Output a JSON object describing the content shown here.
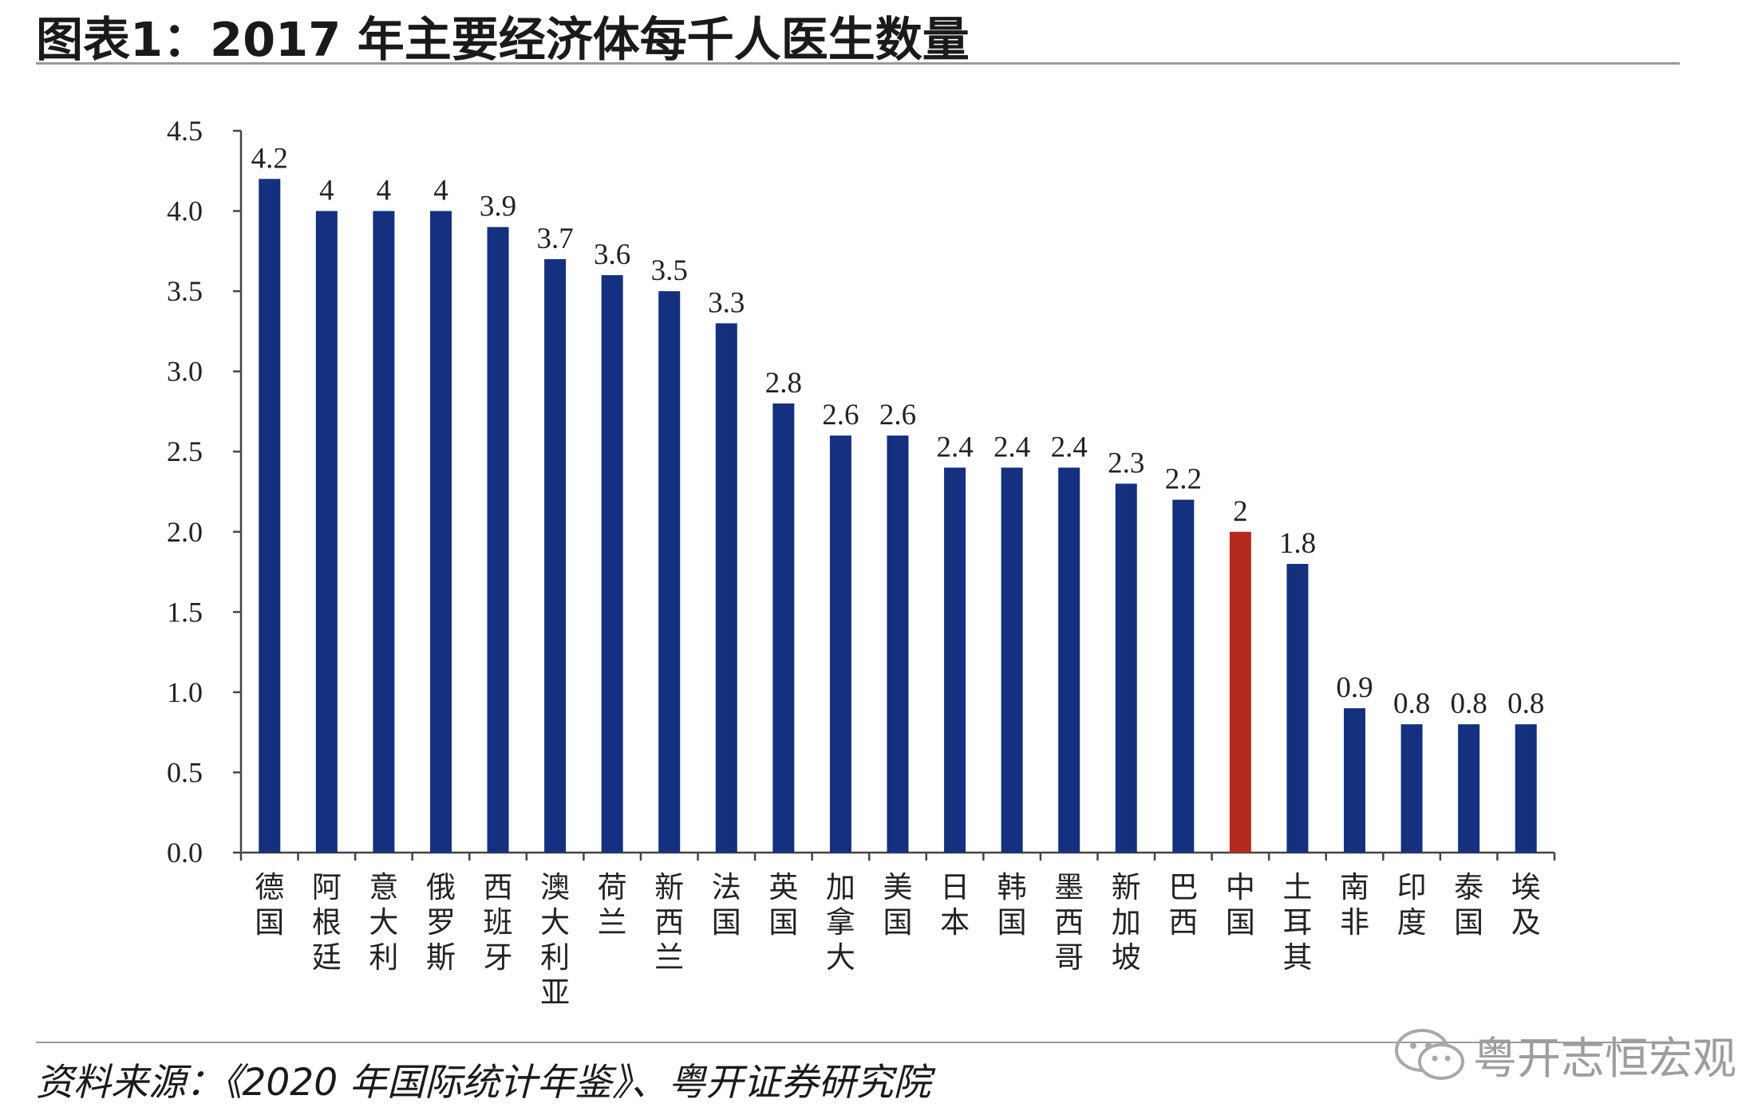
{
  "title": "图表1：2017 年主要经济体每千人医生数量",
  "source": "资料来源：《2020 年国际统计年鉴》、粤开证券研究院",
  "watermark": "粤开志恒宏观",
  "colors": {
    "bar": "#14307e",
    "highlight": "#b52a1f",
    "axis": "#444444"
  },
  "chart_data": {
    "type": "bar",
    "title": "",
    "xlabel": "",
    "ylabel": "",
    "ylim": [
      0,
      4.5
    ],
    "yticks": [
      "0.0",
      "0.5",
      "1.0",
      "1.5",
      "2.0",
      "2.5",
      "3.0",
      "3.5",
      "4.0",
      "4.5"
    ],
    "categories": [
      "德国",
      "阿根廷",
      "意大利",
      "俄罗斯",
      "西班牙",
      "澳大利亚",
      "荷兰",
      "新西兰",
      "法国",
      "英国",
      "加拿大",
      "美国",
      "日本",
      "韩国",
      "墨西哥",
      "新加坡",
      "巴西",
      "中国",
      "土耳其",
      "南非",
      "印度",
      "泰国",
      "埃及"
    ],
    "values": [
      4.2,
      4,
      4,
      4,
      3.9,
      3.7,
      3.6,
      3.5,
      3.3,
      2.8,
      2.6,
      2.6,
      2.4,
      2.4,
      2.4,
      2.3,
      2.2,
      2,
      1.8,
      0.9,
      0.8,
      0.8,
      0.8
    ],
    "value_labels": [
      "4.2",
      "4",
      "4",
      "4",
      "3.9",
      "3.7",
      "3.6",
      "3.5",
      "3.3",
      "2.8",
      "2.6",
      "2.6",
      "2.4",
      "2.4",
      "2.4",
      "2.3",
      "2.2",
      "2",
      "1.8",
      "0.9",
      "0.8",
      "0.8",
      "0.8"
    ],
    "highlight": "中国",
    "grid": false,
    "legend": "none"
  }
}
